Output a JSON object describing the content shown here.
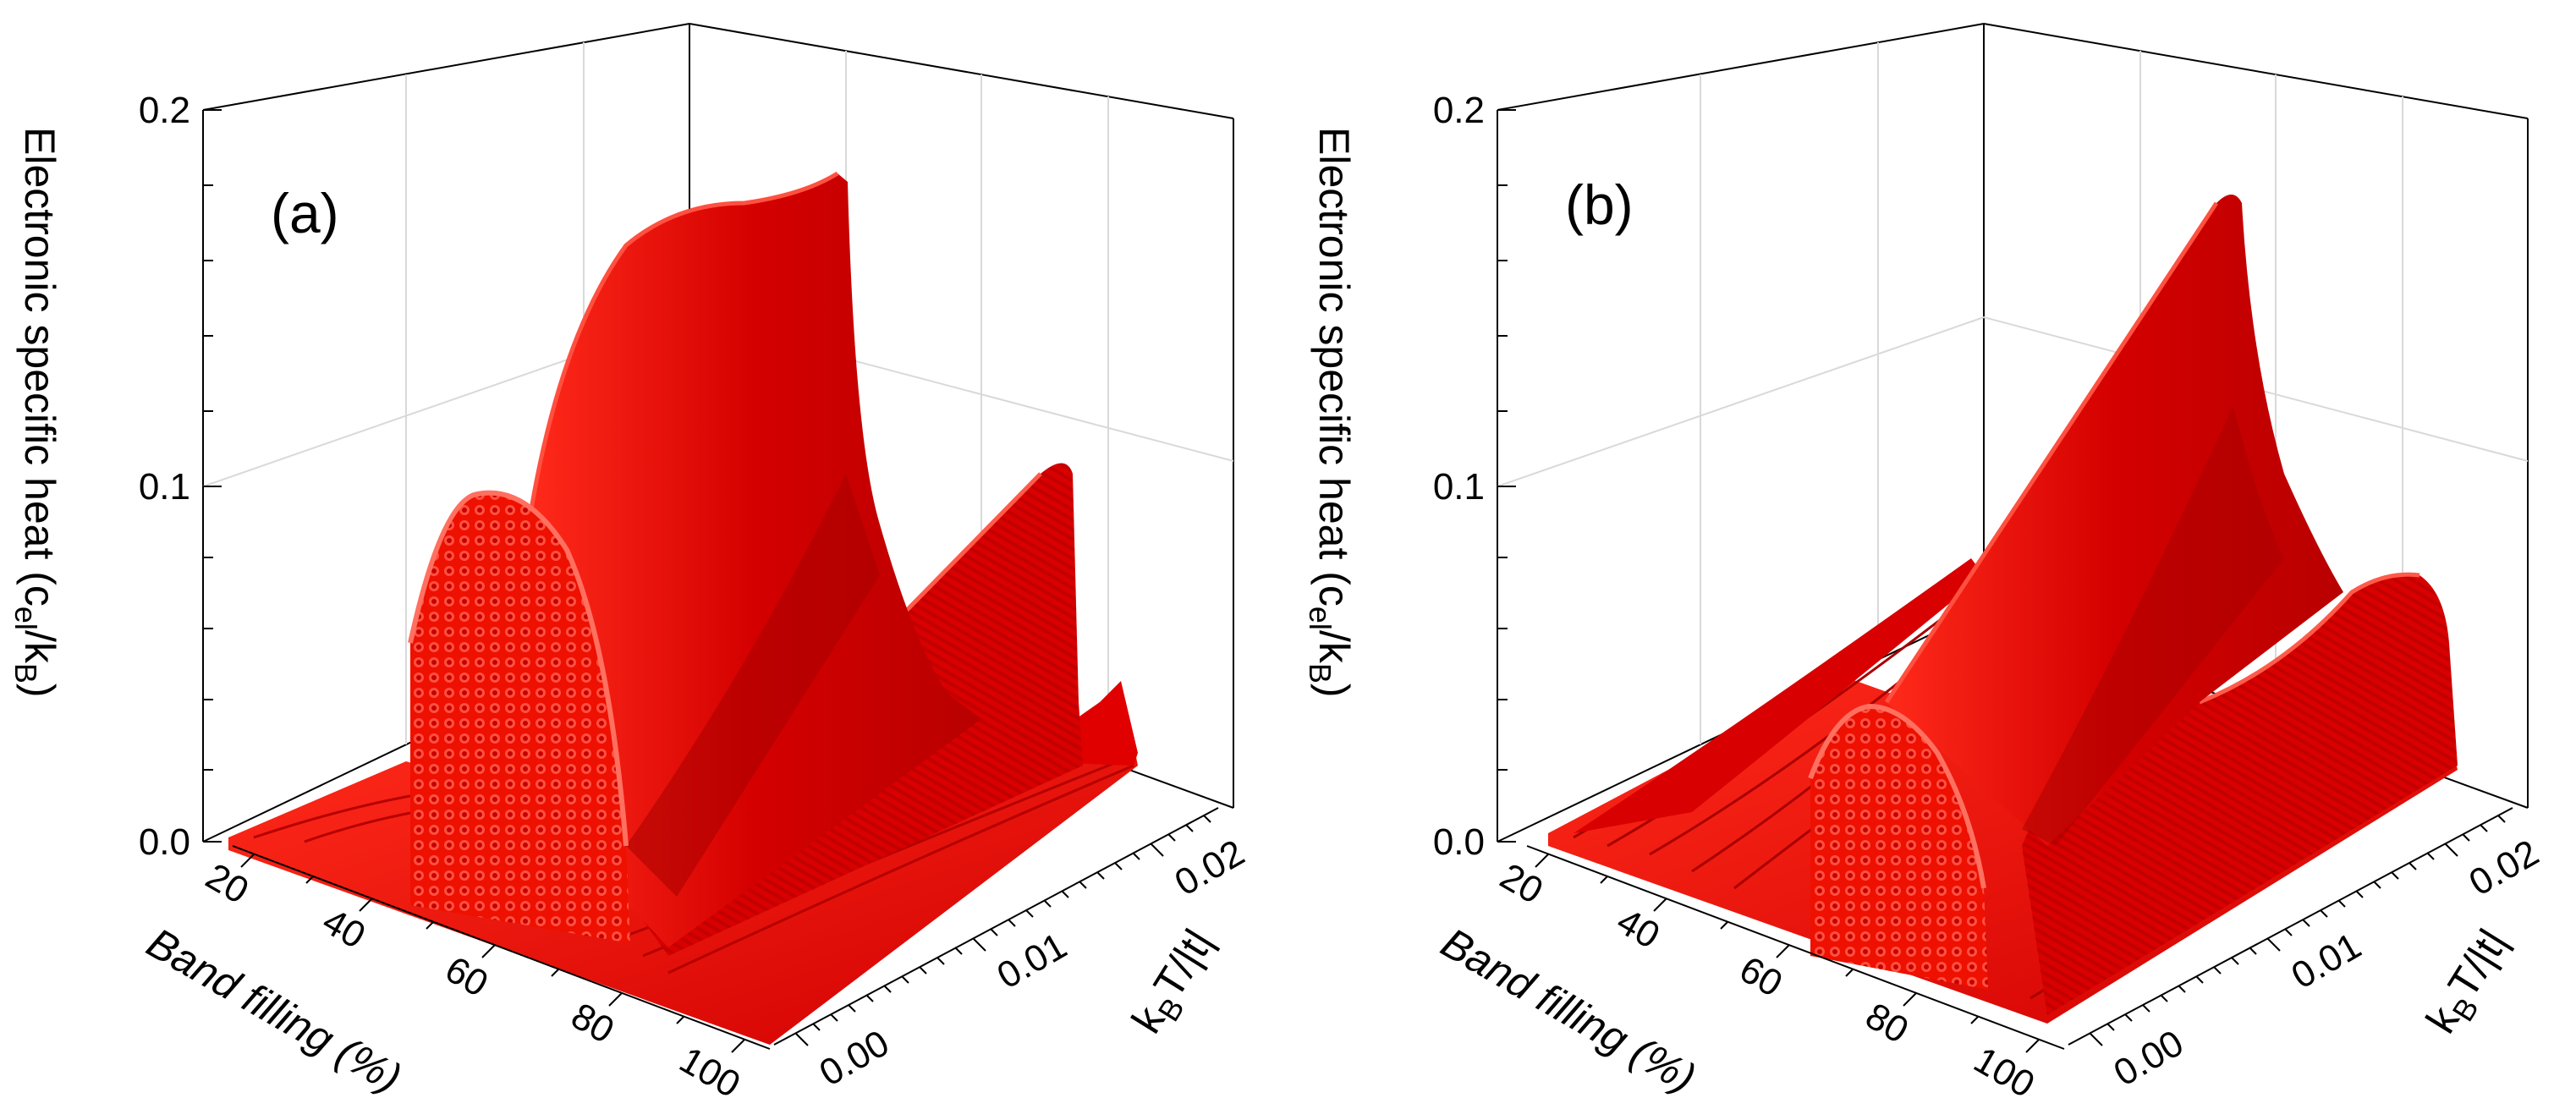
{
  "chart_data": [
    {
      "type": "surface3d",
      "panel_label": "(a)",
      "zlabel": "Electronic specific heat (c_el/k_B)",
      "zlabel_main": "Electronic specific heat (c",
      "zlabel_sub1": "el",
      "zlabel_mid": "/k",
      "zlabel_sub2": "B",
      "zlabel_end": ")",
      "xlabel": "Band filling (%)",
      "ylabel_main": "k",
      "ylabel_sub": "B",
      "ylabel_end": "T/|t|",
      "zlim": [
        0.0,
        0.2
      ],
      "xlim": [
        10,
        100
      ],
      "ylim": [
        0.0,
        0.025
      ],
      "z_ticks": [
        "0.0",
        "0.1",
        "0.2"
      ],
      "x_ticks": [
        "20",
        "40",
        "60",
        "80",
        "100"
      ],
      "y_ticks": [
        "0.00",
        "0.01",
        "0.02"
      ],
      "series": [
        {
          "name": "dome near 50% filling",
          "x": [
            47,
            50,
            53,
            56,
            59,
            62,
            64
          ],
          "z": [
            0.02,
            0.07,
            0.095,
            0.1,
            0.095,
            0.07,
            0.02
          ]
        },
        {
          "name": "main ridge",
          "x": [
            64,
            67,
            70,
            74
          ],
          "z": [
            0.17,
            0.185,
            0.19,
            0.19
          ]
        },
        {
          "name": "secondary ridge",
          "x": [
            70,
            74,
            78,
            82
          ],
          "z": [
            0.05,
            0.07,
            0.09,
            0.11
          ]
        }
      ]
    },
    {
      "type": "surface3d",
      "panel_label": "(b)",
      "zlabel": "Electronic specific heat (c_el/k_B)",
      "zlabel_main": "Electronic specific heat (c",
      "zlabel_sub1": "el",
      "zlabel_mid": "/k",
      "zlabel_sub2": "B",
      "zlabel_end": ")",
      "xlabel": "Band filling (%)",
      "ylabel_main": "k",
      "ylabel_sub": "B",
      "ylabel_end": "T/|t|",
      "zlim": [
        0.0,
        0.2
      ],
      "xlim": [
        10,
        100
      ],
      "ylim": [
        0.0,
        0.025
      ],
      "z_ticks": [
        "0.0",
        "0.1",
        "0.2"
      ],
      "x_ticks": [
        "20",
        "40",
        "60",
        "80",
        "100"
      ],
      "y_ticks": [
        "0.00",
        "0.01",
        "0.02"
      ],
      "series": [
        {
          "name": "dome near 60% filling",
          "x": [
            56,
            59,
            62,
            65,
            68
          ],
          "z": [
            0.02,
            0.045,
            0.05,
            0.045,
            0.02
          ]
        },
        {
          "name": "main ridge",
          "x": [
            68,
            72,
            76,
            80
          ],
          "z": [
            0.1,
            0.14,
            0.17,
            0.19
          ]
        },
        {
          "name": "plateau",
          "x": [
            80,
            86,
            92,
            98
          ],
          "z": [
            0.06,
            0.07,
            0.075,
            0.06
          ]
        }
      ]
    }
  ],
  "colors": {
    "surface": "#e50000",
    "surface_dark": "#c30000",
    "surface_light": "#ff3a2a",
    "grid": "#d9d9d9",
    "axis": "#000000"
  }
}
